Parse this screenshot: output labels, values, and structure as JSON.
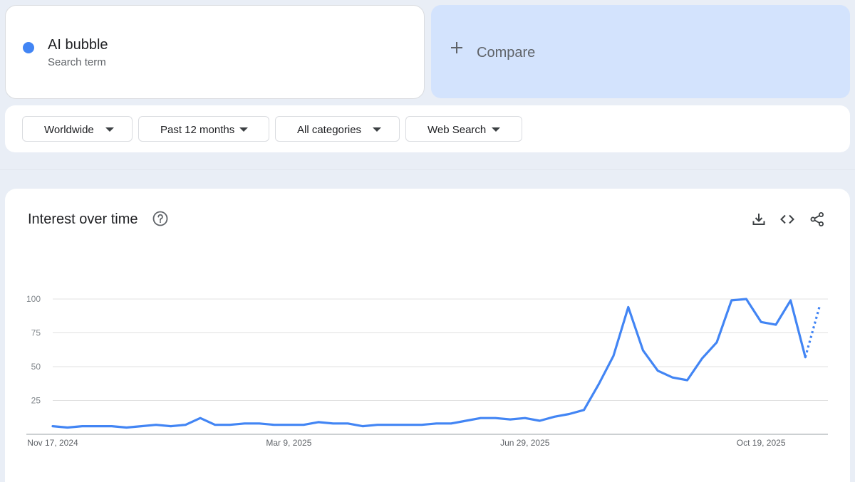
{
  "search_term": {
    "name": "AI bubble",
    "subtitle": "Search term",
    "color": "#4285f4",
    "icon": "circle-dot-icon"
  },
  "compare": {
    "label": "Compare",
    "icon": "plus-icon"
  },
  "filters": [
    {
      "label": "Worldwide",
      "icon": "caret-down-icon"
    },
    {
      "label": "Past 12 months",
      "icon": "caret-down-icon"
    },
    {
      "label": "All categories",
      "icon": "caret-down-icon"
    },
    {
      "label": "Web Search",
      "icon": "caret-down-icon"
    }
  ],
  "panel": {
    "title": "Interest over time",
    "help_icon": "help-circle-icon",
    "tools": [
      "download-icon",
      "embed-code-icon",
      "share-icon"
    ]
  },
  "chart_data": {
    "type": "line",
    "title": "",
    "xlabel": "",
    "ylabel": "",
    "ylim": [
      0,
      100
    ],
    "yticks": [
      "25",
      "50",
      "75",
      "100"
    ],
    "xtick_labels": [
      "Nov 17, 2024",
      "Mar 9, 2025",
      "Jun 29, 2025",
      "Oct 19, 2025"
    ],
    "grid": true,
    "line_color": "#4285f4",
    "partial_last_point": true,
    "series": [
      {
        "x": [
          "2024-11-17",
          "2024-11-24",
          "2024-12-01",
          "2024-12-08",
          "2024-12-15",
          "2024-12-22",
          "2024-12-29",
          "2025-01-05",
          "2025-01-12",
          "2025-01-19",
          "2025-01-26",
          "2025-02-02",
          "2025-02-09",
          "2025-02-16",
          "2025-02-23",
          "2025-03-02",
          "2025-03-09",
          "2025-03-16",
          "2025-03-23",
          "2025-03-30",
          "2025-04-06",
          "2025-04-13",
          "2025-04-20",
          "2025-04-27",
          "2025-05-04",
          "2025-05-11",
          "2025-05-18",
          "2025-05-25",
          "2025-06-01",
          "2025-06-08",
          "2025-06-15",
          "2025-06-22",
          "2025-06-29",
          "2025-07-06",
          "2025-07-13",
          "2025-07-20",
          "2025-07-27",
          "2025-08-03",
          "2025-08-10",
          "2025-08-17",
          "2025-08-24",
          "2025-08-31",
          "2025-09-07",
          "2025-09-14",
          "2025-09-21",
          "2025-09-28",
          "2025-10-05",
          "2025-10-12",
          "2025-10-19",
          "2025-10-26",
          "2025-11-02",
          "2025-11-09",
          "2025-11-16"
        ],
        "values": [
          6,
          5,
          6,
          6,
          6,
          5,
          6,
          7,
          6,
          7,
          12,
          7,
          7,
          8,
          8,
          7,
          7,
          7,
          9,
          8,
          8,
          6,
          7,
          7,
          7,
          7,
          8,
          8,
          10,
          12,
          12,
          11,
          12,
          10,
          13,
          15,
          18,
          37,
          58,
          94,
          62,
          47,
          42,
          40,
          56,
          68,
          99,
          100,
          83,
          81,
          99,
          57,
          96
        ]
      }
    ]
  }
}
